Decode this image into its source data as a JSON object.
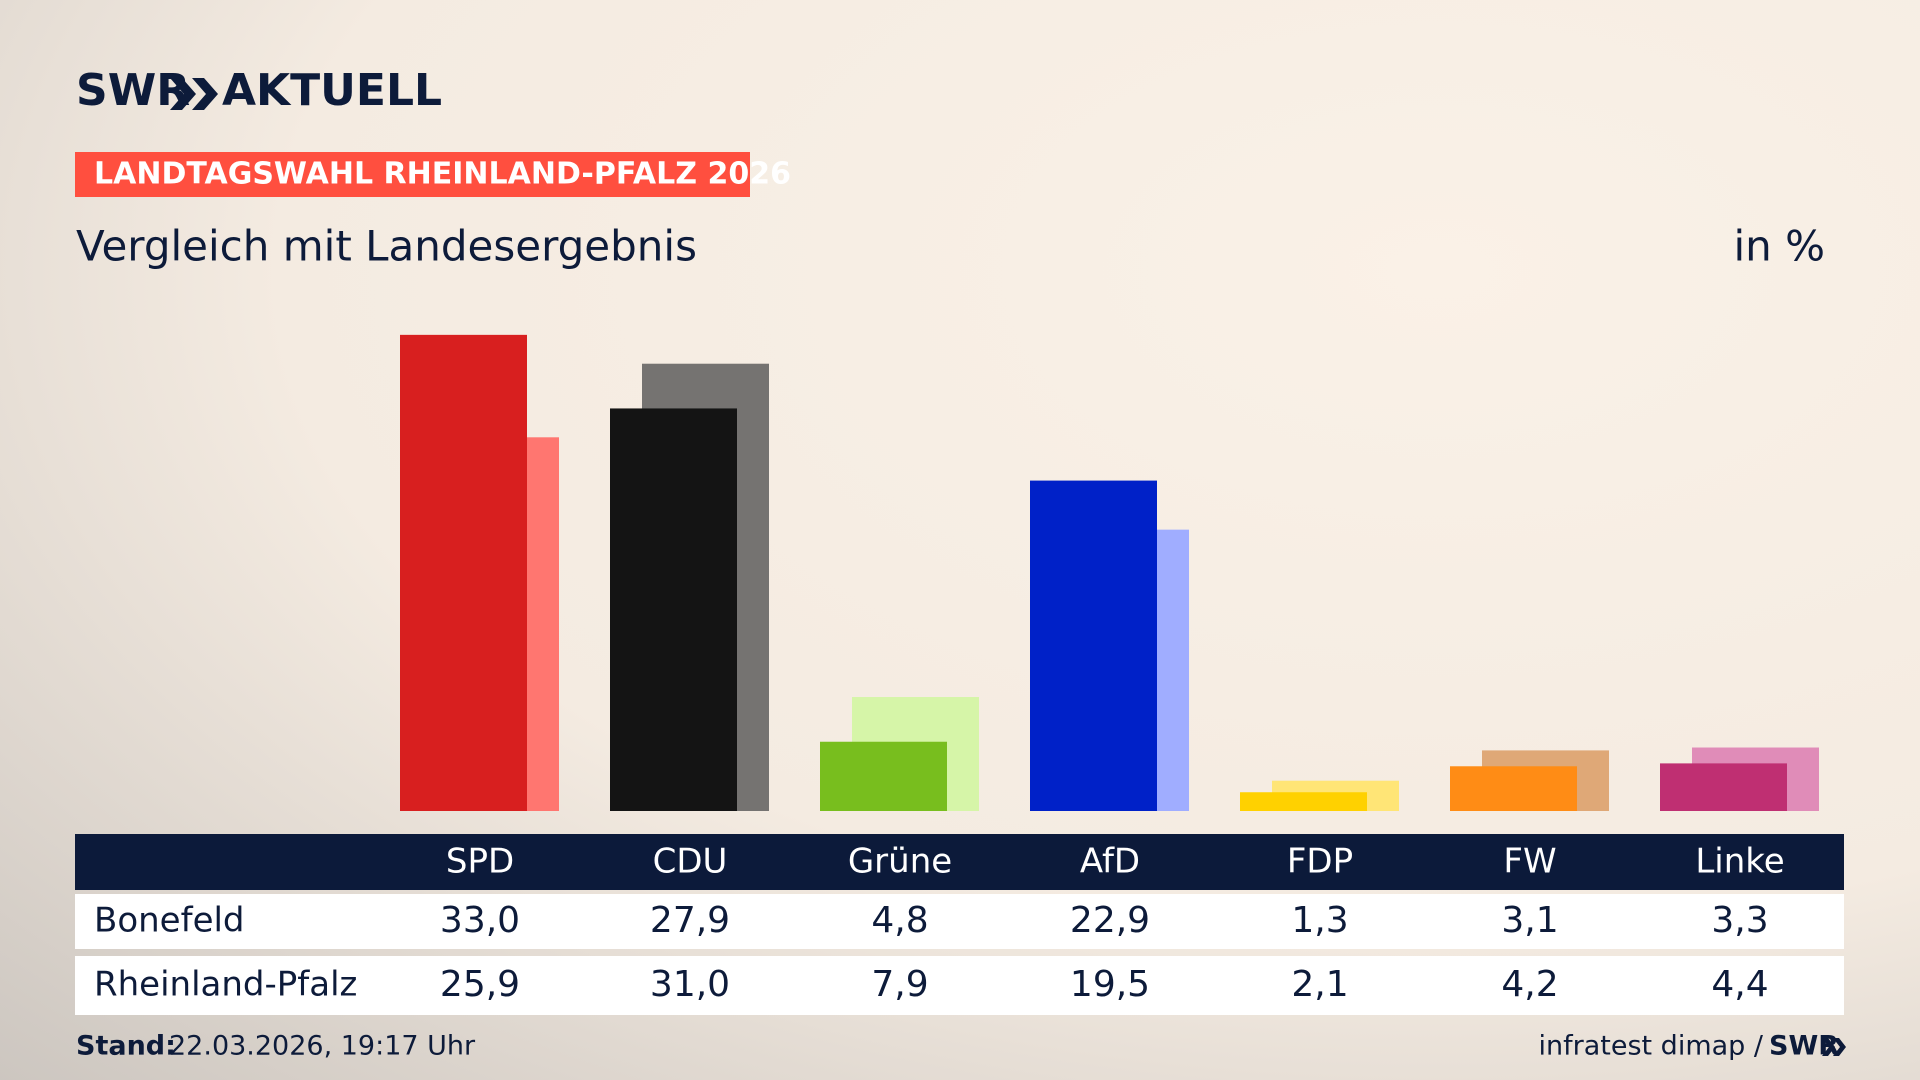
{
  "chart_data": {
    "type": "bar",
    "logo": "SWR",
    "logo_suffix": "AKTUELL",
    "kicker": "LANDTAGSWAHL RHEINLAND-PFALZ 2026",
    "title": "Vergleich mit Landesergebnis",
    "unit_label": "in %",
    "categories": [
      "SPD",
      "CDU",
      "Grüne",
      "AfD",
      "FDP",
      "FW",
      "Linke"
    ],
    "series": [
      {
        "name": "Bonefeld",
        "colors": [
          "#d81f1f",
          "#141414",
          "#78be1e",
          "#0021c8",
          "#ffd100",
          "#ff8c15",
          "#bf2f72"
        ],
        "values": [
          33.0,
          27.9,
          4.8,
          22.9,
          1.3,
          3.1,
          3.3
        ],
        "value_labels": [
          "33,0",
          "27,9",
          "4,8",
          "22,9",
          "1,3",
          "3,1",
          "3,3"
        ]
      },
      {
        "name": "Rheinland-Pfalz",
        "colors": [
          "#ff7670",
          "#757371",
          "#d6f5a8",
          "#a0adff",
          "#ffe576",
          "#dfa877",
          "#e08cb8"
        ],
        "values": [
          25.9,
          31.0,
          7.9,
          19.5,
          2.1,
          4.2,
          4.4
        ],
        "value_labels": [
          "25,9",
          "31,0",
          "7,9",
          "19,5",
          "2,1",
          "4,2",
          "4,4"
        ]
      }
    ],
    "ylim": [
      0,
      35
    ],
    "stand_label": "Stand:",
    "stand": "22.03.2026, 19:17 Uhr",
    "source": "infratest dimap /",
    "source_brand": "SWR"
  }
}
